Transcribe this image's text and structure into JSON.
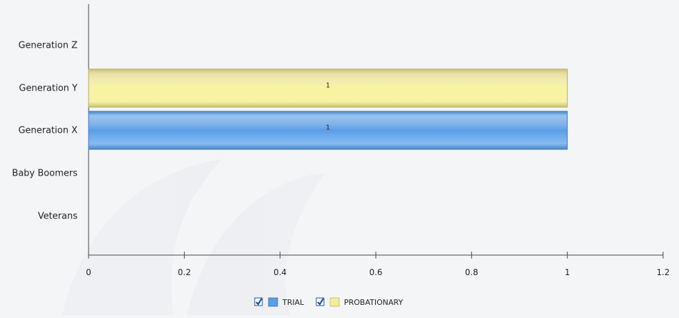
{
  "chart_data": {
    "type": "bar",
    "orientation": "horizontal",
    "categories": [
      "Generation Z",
      "Generation Y",
      "Generation X",
      "Baby Boomers",
      "Veterans"
    ],
    "series": [
      {
        "name": "TRIAL",
        "values": [
          0,
          0,
          1,
          0,
          0
        ],
        "color": "#5b9ee6"
      },
      {
        "name": "PROBATIONARY",
        "values": [
          0,
          1,
          0,
          0,
          0
        ],
        "color": "#f3ec9a"
      }
    ],
    "xticks": [
      "0",
      "0.2",
      "0.4",
      "0.6",
      "0.8",
      "1",
      "1.2"
    ],
    "xlim": [
      0,
      1.2
    ],
    "data_labels": [
      "1",
      "1"
    ],
    "legend": {
      "placement": "bottom-center",
      "items": [
        {
          "label": "TRIAL",
          "checked": true
        },
        {
          "label": "PROBATIONARY",
          "checked": true
        }
      ]
    },
    "grid": false,
    "title": "",
    "xlabel": "",
    "ylabel": ""
  }
}
